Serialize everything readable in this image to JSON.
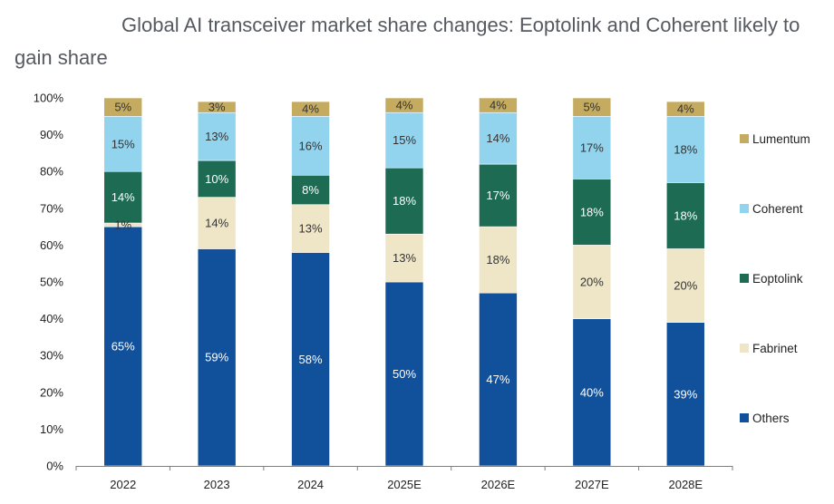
{
  "chart_data": {
    "type": "bar",
    "stacked": true,
    "title": "Global AI transceiver market share changes: Eoptolink and Coherent likely to gain share",
    "xlabel": "",
    "ylabel": "",
    "ylim": [
      0,
      100
    ],
    "yticks": [
      "0%",
      "10%",
      "20%",
      "30%",
      "40%",
      "50%",
      "60%",
      "70%",
      "80%",
      "90%",
      "100%"
    ],
    "categories": [
      "2022",
      "2023",
      "2024",
      "2025E",
      "2026E",
      "2027E",
      "2028E"
    ],
    "series": [
      {
        "name": "Others",
        "color": "#11519c",
        "label_color": "#ffffff",
        "values": [
          65,
          59,
          58,
          50,
          47,
          40,
          39
        ]
      },
      {
        "name": "Fabrinet",
        "color": "#efe6c8",
        "label_color": "#333333",
        "values": [
          1,
          14,
          13,
          13,
          18,
          20,
          20
        ]
      },
      {
        "name": "Eoptolink",
        "color": "#1e6b53",
        "label_color": "#ffffff",
        "values": [
          14,
          10,
          8,
          18,
          17,
          18,
          18
        ]
      },
      {
        "name": "Coherent",
        "color": "#92d3ee",
        "label_color": "#333333",
        "values": [
          15,
          13,
          16,
          15,
          14,
          17,
          18
        ]
      },
      {
        "name": "Lumentum",
        "color": "#c4ab5f",
        "label_color": "#333333",
        "values": [
          5,
          3,
          4,
          4,
          4,
          5,
          4
        ]
      }
    ],
    "value_labels": [
      [
        "65%",
        "59%",
        "58%",
        "50%",
        "47%",
        "40%",
        "39%"
      ],
      [
        "1%",
        "14%",
        "13%",
        "13%",
        "18%",
        "20%",
        "20%"
      ],
      [
        "14%",
        "10%",
        "8%",
        "18%",
        "17%",
        "18%",
        "18%"
      ],
      [
        "15%",
        "13%",
        "16%",
        "15%",
        "14%",
        "17%",
        "18%"
      ],
      [
        "5%",
        "3%",
        "4%",
        "4%",
        "4%",
        "5%",
        "4%"
      ]
    ],
    "legend": {
      "position": "right",
      "order": [
        "Lumentum",
        "Coherent",
        "Eoptolink",
        "Fabrinet",
        "Others"
      ]
    }
  }
}
